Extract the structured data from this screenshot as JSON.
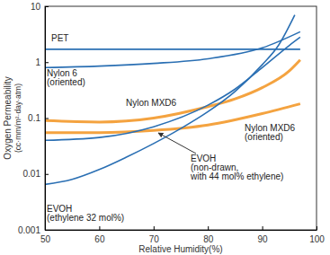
{
  "chart_data": {
    "type": "line",
    "x_label": "Relative Humidity(%)",
    "y_label": "Oxygen Permeability\n(cc·mm/m²·day·atm)",
    "xlim": [
      50,
      100
    ],
    "xticks": [
      50,
      60,
      70,
      80,
      90,
      100
    ],
    "ylim": [
      0.001,
      10
    ],
    "yticks": [
      0.001,
      0.01,
      0.1,
      1,
      10
    ],
    "log": "y",
    "grid": false,
    "series": [
      {
        "name": "PET",
        "color": "#2a6fb3",
        "x": [
          50,
          60,
          70,
          80,
          90,
          97
        ],
        "values": [
          1.7,
          1.7,
          1.7,
          1.7,
          1.7,
          1.7
        ]
      },
      {
        "name": "Nylon 6\n(oriented)",
        "color": "#2a6fb3",
        "x": [
          50,
          60,
          70,
          80,
          90,
          97
        ],
        "values": [
          0.8,
          0.85,
          0.95,
          1.15,
          1.8,
          3.5
        ]
      },
      {
        "name": "Nylon MXD6",
        "color": "#f4a340",
        "x": [
          50,
          60,
          70,
          80,
          85,
          90,
          95,
          97
        ],
        "values": [
          0.09,
          0.085,
          0.1,
          0.16,
          0.22,
          0.35,
          0.7,
          1.1
        ]
      },
      {
        "name": "Nylon MXD6\n(oriented)",
        "color": "#f4a340",
        "x": [
          50,
          60,
          70,
          80,
          90,
          97
        ],
        "values": [
          0.055,
          0.055,
          0.06,
          0.075,
          0.12,
          0.18
        ]
      },
      {
        "name": "EVOH\n(non-drawn,\nwith 44 mol% ethylene)",
        "color": "#2a6fb3",
        "x": [
          50,
          60,
          70,
          80,
          85,
          90,
          95,
          97
        ],
        "values": [
          0.04,
          0.045,
          0.07,
          0.17,
          0.33,
          0.8,
          2.0,
          2.8
        ]
      },
      {
        "name": "EVOH\n(ethylene 32 mol%)",
        "color": "#2a6fb3",
        "x": [
          50,
          55,
          60,
          65,
          70,
          75,
          80,
          85,
          90,
          93,
          96
        ],
        "values": [
          0.0065,
          0.008,
          0.012,
          0.02,
          0.035,
          0.065,
          0.13,
          0.3,
          0.9,
          2.0,
          7
        ]
      }
    ]
  }
}
